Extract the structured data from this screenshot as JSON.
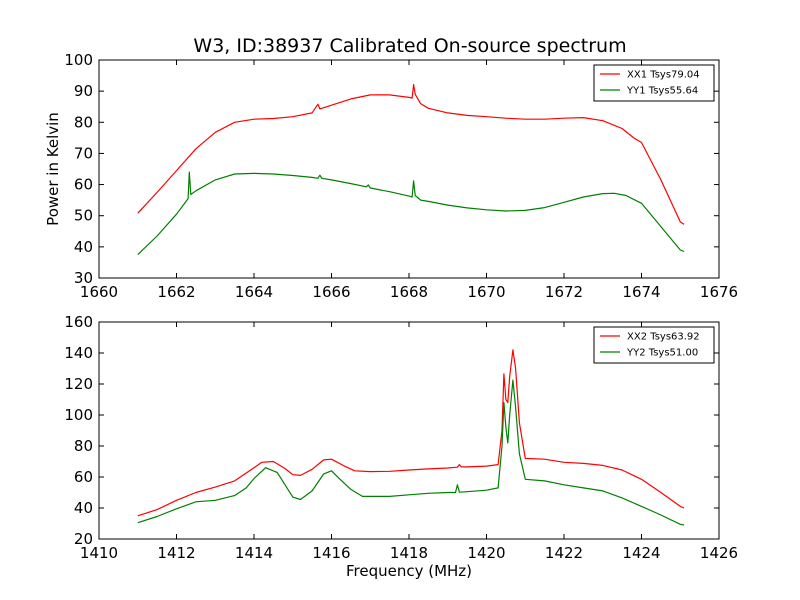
{
  "figure": {
    "title": "W3, ID:38937 Calibrated On-source spectrum"
  },
  "chart_data": [
    {
      "type": "line",
      "title": "W3, ID:38937 Calibrated On-source spectrum",
      "xlabel": "",
      "ylabel": "Power in Kelvin",
      "xlim": [
        1660,
        1676
      ],
      "ylim": [
        30,
        100
      ],
      "xticks": [
        "1660",
        "1662",
        "1664",
        "1666",
        "1668",
        "1670",
        "1672",
        "1674",
        "1676"
      ],
      "yticks": [
        "30",
        "40",
        "50",
        "60",
        "70",
        "80",
        "90",
        "100"
      ],
      "legend_position": "top-right",
      "grid": false,
      "series": [
        {
          "name": "XX1 Tsys79.04",
          "color": "#ff0000",
          "points": [
            [
              1661.0,
              50.8
            ],
            [
              1661.5,
              57.5
            ],
            [
              1662.0,
              64.5
            ],
            [
              1662.5,
              71.5
            ],
            [
              1663.0,
              76.8
            ],
            [
              1663.5,
              80.0
            ],
            [
              1664.0,
              81.0
            ],
            [
              1664.5,
              81.2
            ],
            [
              1665.0,
              81.8
            ],
            [
              1665.5,
              83.0
            ],
            [
              1665.65,
              85.8
            ],
            [
              1665.7,
              84.3
            ],
            [
              1666.0,
              85.5
            ],
            [
              1666.5,
              87.5
            ],
            [
              1667.0,
              88.8
            ],
            [
              1667.5,
              88.8
            ],
            [
              1668.0,
              88.0
            ],
            [
              1668.08,
              87.8
            ],
            [
              1668.12,
              92.1
            ],
            [
              1668.16,
              89.0
            ],
            [
              1668.3,
              86.0
            ],
            [
              1668.5,
              84.5
            ],
            [
              1669.0,
              83.0
            ],
            [
              1669.5,
              82.2
            ],
            [
              1670.0,
              81.8
            ],
            [
              1670.5,
              81.3
            ],
            [
              1671.0,
              81.0
            ],
            [
              1671.5,
              81.0
            ],
            [
              1672.0,
              81.3
            ],
            [
              1672.5,
              81.5
            ],
            [
              1673.0,
              80.5
            ],
            [
              1673.5,
              78.0
            ],
            [
              1673.8,
              75.0
            ],
            [
              1674.0,
              73.5
            ],
            [
              1674.5,
              61.5
            ],
            [
              1675.0,
              48.0
            ],
            [
              1675.1,
              47.2
            ]
          ]
        },
        {
          "name": "YY1 Tsys55.64",
          "color": "#008000",
          "points": [
            [
              1661.0,
              37.5
            ],
            [
              1661.5,
              43.5
            ],
            [
              1662.0,
              50.5
            ],
            [
              1662.3,
              55.5
            ],
            [
              1662.33,
              64.0
            ],
            [
              1662.37,
              56.8
            ],
            [
              1662.5,
              58.0
            ],
            [
              1663.0,
              61.5
            ],
            [
              1663.5,
              63.4
            ],
            [
              1664.0,
              63.6
            ],
            [
              1664.5,
              63.4
            ],
            [
              1665.0,
              62.9
            ],
            [
              1665.5,
              62.3
            ],
            [
              1665.65,
              62.0
            ],
            [
              1665.7,
              63.0
            ],
            [
              1665.75,
              62.0
            ],
            [
              1666.0,
              61.5
            ],
            [
              1666.5,
              60.3
            ],
            [
              1666.9,
              59.3
            ],
            [
              1666.95,
              59.9
            ],
            [
              1667.0,
              58.9
            ],
            [
              1667.5,
              57.7
            ],
            [
              1668.0,
              56.3
            ],
            [
              1668.08,
              56.0
            ],
            [
              1668.12,
              61.2
            ],
            [
              1668.16,
              56.5
            ],
            [
              1668.3,
              55.0
            ],
            [
              1668.5,
              54.6
            ],
            [
              1669.0,
              53.4
            ],
            [
              1669.5,
              52.5
            ],
            [
              1670.0,
              51.9
            ],
            [
              1670.5,
              51.5
            ],
            [
              1671.0,
              51.7
            ],
            [
              1671.5,
              52.6
            ],
            [
              1672.0,
              54.3
            ],
            [
              1672.5,
              56.0
            ],
            [
              1673.0,
              57.1
            ],
            [
              1673.3,
              57.2
            ],
            [
              1673.6,
              56.5
            ],
            [
              1674.0,
              54.0
            ],
            [
              1674.5,
              46.5
            ],
            [
              1675.0,
              39.0
            ],
            [
              1675.1,
              38.5
            ]
          ]
        }
      ]
    },
    {
      "type": "line",
      "title": "",
      "xlabel": "Frequency (MHz)",
      "ylabel": "",
      "xlim": [
        1410,
        1426
      ],
      "ylim": [
        20,
        160
      ],
      "xticks": [
        "1410",
        "1412",
        "1414",
        "1416",
        "1418",
        "1420",
        "1422",
        "1424",
        "1426"
      ],
      "yticks": [
        "20",
        "40",
        "60",
        "80",
        "100",
        "120",
        "140",
        "160"
      ],
      "legend_position": "top-right",
      "grid": false,
      "series": [
        {
          "name": "XX2 Tsys63.92",
          "color": "#ff0000",
          "points": [
            [
              1411.0,
              35.0
            ],
            [
              1411.5,
              39.0
            ],
            [
              1412.0,
              45.0
            ],
            [
              1412.5,
              50.0
            ],
            [
              1413.0,
              53.5
            ],
            [
              1413.5,
              57.5
            ],
            [
              1414.0,
              66.0
            ],
            [
              1414.2,
              69.5
            ],
            [
              1414.5,
              70.0
            ],
            [
              1414.8,
              65.5
            ],
            [
              1415.0,
              61.5
            ],
            [
              1415.2,
              61.0
            ],
            [
              1415.5,
              65.0
            ],
            [
              1415.8,
              71.0
            ],
            [
              1416.0,
              71.5
            ],
            [
              1416.3,
              67.5
            ],
            [
              1416.6,
              64.0
            ],
            [
              1417.0,
              63.5
            ],
            [
              1417.5,
              63.7
            ],
            [
              1418.0,
              64.5
            ],
            [
              1418.5,
              65.2
            ],
            [
              1419.0,
              65.8
            ],
            [
              1419.25,
              66.3
            ],
            [
              1419.3,
              68.0
            ],
            [
              1419.35,
              66.5
            ],
            [
              1419.5,
              66.5
            ],
            [
              1420.0,
              67.0
            ],
            [
              1420.3,
              68.0
            ],
            [
              1420.4,
              90.0
            ],
            [
              1420.45,
              126.5
            ],
            [
              1420.5,
              110.0
            ],
            [
              1420.55,
              108.0
            ],
            [
              1420.6,
              125.0
            ],
            [
              1420.68,
              142.0
            ],
            [
              1420.75,
              130.0
            ],
            [
              1420.85,
              95.0
            ],
            [
              1421.0,
              72.0
            ],
            [
              1421.5,
              71.5
            ],
            [
              1422.0,
              69.5
            ],
            [
              1422.5,
              68.8
            ],
            [
              1423.0,
              67.5
            ],
            [
              1423.5,
              64.5
            ],
            [
              1424.0,
              58.5
            ],
            [
              1424.5,
              50.0
            ],
            [
              1425.0,
              41.0
            ],
            [
              1425.1,
              40.0
            ]
          ]
        },
        {
          "name": "YY2 Tsys51.00",
          "color": "#008000",
          "points": [
            [
              1411.0,
              30.5
            ],
            [
              1411.5,
              34.5
            ],
            [
              1412.0,
              39.5
            ],
            [
              1412.5,
              44.0
            ],
            [
              1413.0,
              45.0
            ],
            [
              1413.5,
              48.0
            ],
            [
              1413.8,
              53.0
            ],
            [
              1414.0,
              59.0
            ],
            [
              1414.3,
              66.0
            ],
            [
              1414.6,
              63.0
            ],
            [
              1414.8,
              55.0
            ],
            [
              1415.0,
              47.0
            ],
            [
              1415.2,
              45.5
            ],
            [
              1415.5,
              51.0
            ],
            [
              1415.8,
              62.0
            ],
            [
              1416.0,
              64.0
            ],
            [
              1416.2,
              59.0
            ],
            [
              1416.5,
              52.0
            ],
            [
              1416.8,
              47.5
            ],
            [
              1417.5,
              47.5
            ],
            [
              1418.0,
              48.5
            ],
            [
              1418.5,
              49.5
            ],
            [
              1419.0,
              50.0
            ],
            [
              1419.2,
              50.0
            ],
            [
              1419.25,
              55.0
            ],
            [
              1419.3,
              50.2
            ],
            [
              1419.5,
              50.5
            ],
            [
              1420.0,
              51.5
            ],
            [
              1420.3,
              53.0
            ],
            [
              1420.4,
              80.0
            ],
            [
              1420.45,
              108.0
            ],
            [
              1420.5,
              92.0
            ],
            [
              1420.55,
              82.0
            ],
            [
              1420.6,
              100.0
            ],
            [
              1420.68,
              122.5
            ],
            [
              1420.75,
              105.0
            ],
            [
              1420.85,
              75.0
            ],
            [
              1421.0,
              58.5
            ],
            [
              1421.5,
              57.5
            ],
            [
              1422.0,
              55.0
            ],
            [
              1422.5,
              53.0
            ],
            [
              1423.0,
              51.0
            ],
            [
              1423.5,
              46.5
            ],
            [
              1424.0,
              41.0
            ],
            [
              1424.5,
              35.5
            ],
            [
              1425.0,
              29.5
            ],
            [
              1425.1,
              29.0
            ]
          ]
        }
      ]
    }
  ]
}
